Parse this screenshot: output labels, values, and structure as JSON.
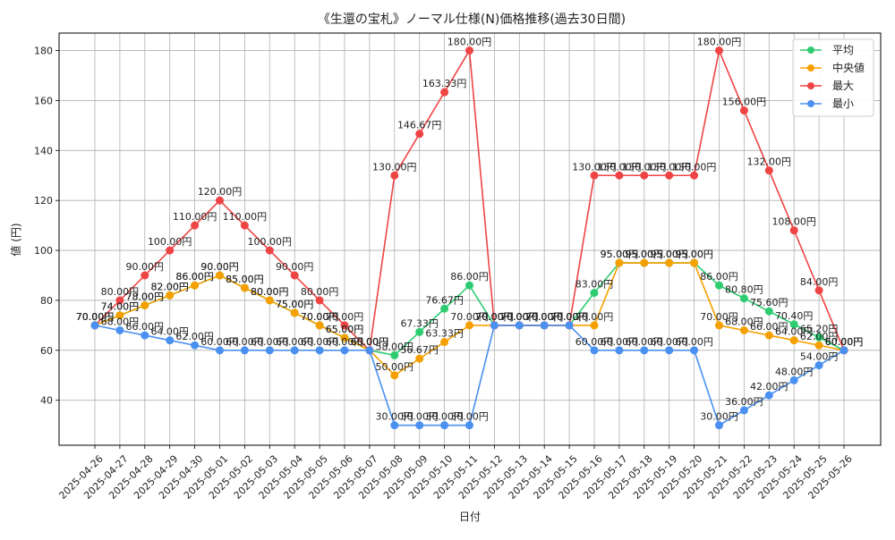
{
  "chart_data": {
    "type": "line",
    "title": "《生還の宝札》ノーマル仕様(N)価格推移(過去30日間)",
    "xlabel": "日付",
    "ylabel": "値 (円)",
    "ylim": [
      22,
      187
    ],
    "yticks": [
      40,
      60,
      80,
      100,
      120,
      140,
      160,
      180
    ],
    "grid": true,
    "legend_position": "top-right",
    "label_suffix": "円",
    "categories": [
      "2025-04-26",
      "2025-04-27",
      "2025-04-28",
      "2025-04-29",
      "2025-04-30",
      "2025-05-01",
      "2025-05-02",
      "2025-05-03",
      "2025-05-04",
      "2025-05-05",
      "2025-05-06",
      "2025-05-07",
      "2025-05-08",
      "2025-05-09",
      "2025-05-10",
      "2025-05-11",
      "2025-05-12",
      "2025-05-13",
      "2025-05-14",
      "2025-05-15",
      "2025-05-16",
      "2025-05-17",
      "2025-05-18",
      "2025-05-19",
      "2025-05-20",
      "2025-05-21",
      "2025-05-22",
      "2025-05-23",
      "2025-05-24",
      "2025-05-25",
      "2025-05-26"
    ],
    "series": [
      {
        "name": "平均",
        "color": "#2ecc71",
        "values": [
          70,
          74,
          78,
          82,
          86,
          90,
          85,
          80,
          75,
          70,
          65,
          60,
          58,
          67.33,
          76.67,
          86,
          70,
          70,
          70,
          70,
          83,
          95,
          95,
          95,
          95,
          86,
          80.8,
          75.6,
          70.4,
          65.2,
          60
        ]
      },
      {
        "name": "中央値",
        "color": "#f5a000",
        "values": [
          70,
          74,
          78,
          82,
          86,
          90,
          85,
          80,
          75,
          70,
          65,
          60,
          50,
          56.67,
          63.33,
          70,
          70,
          70,
          70,
          70,
          70,
          95,
          95,
          95,
          95,
          70,
          68,
          66,
          64,
          62,
          60
        ]
      },
      {
        "name": "最大",
        "color": "#ef4444",
        "values": [
          70,
          80,
          90,
          100,
          110,
          120,
          110,
          100,
          90,
          80,
          70,
          60,
          130,
          146.67,
          163.33,
          180,
          70,
          70,
          70,
          70,
          130,
          130,
          130,
          130,
          130,
          180,
          156,
          132,
          108,
          84,
          60
        ]
      },
      {
        "name": "最小",
        "color": "#4a90f0",
        "values": [
          70,
          68,
          66,
          64,
          62,
          60,
          60,
          60,
          60,
          60,
          60,
          60,
          30,
          30,
          30,
          30,
          70,
          70,
          70,
          70,
          60,
          60,
          60,
          60,
          60,
          30,
          36,
          42,
          48,
          54,
          60
        ]
      }
    ]
  }
}
